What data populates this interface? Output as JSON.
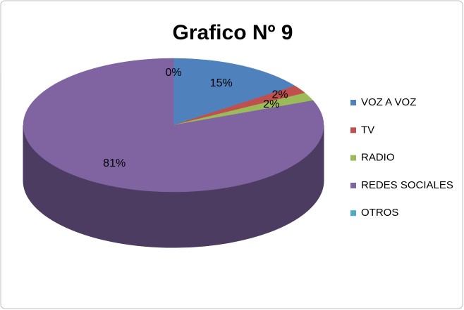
{
  "chart_data": {
    "type": "pie",
    "title": "Grafico Nº 9",
    "categories": [
      "VOZ A VOZ",
      "TV",
      "RADIO",
      "REDES SOCIALES",
      "OTROS"
    ],
    "values": [
      15,
      2,
      2,
      81,
      0
    ],
    "value_labels": [
      "15%",
      "2%",
      "2%",
      "81%",
      "0%"
    ],
    "colors": [
      "#4f81bd",
      "#c0504d",
      "#9bbb59",
      "#8064a2",
      "#4bacc6"
    ],
    "legend": "right"
  }
}
